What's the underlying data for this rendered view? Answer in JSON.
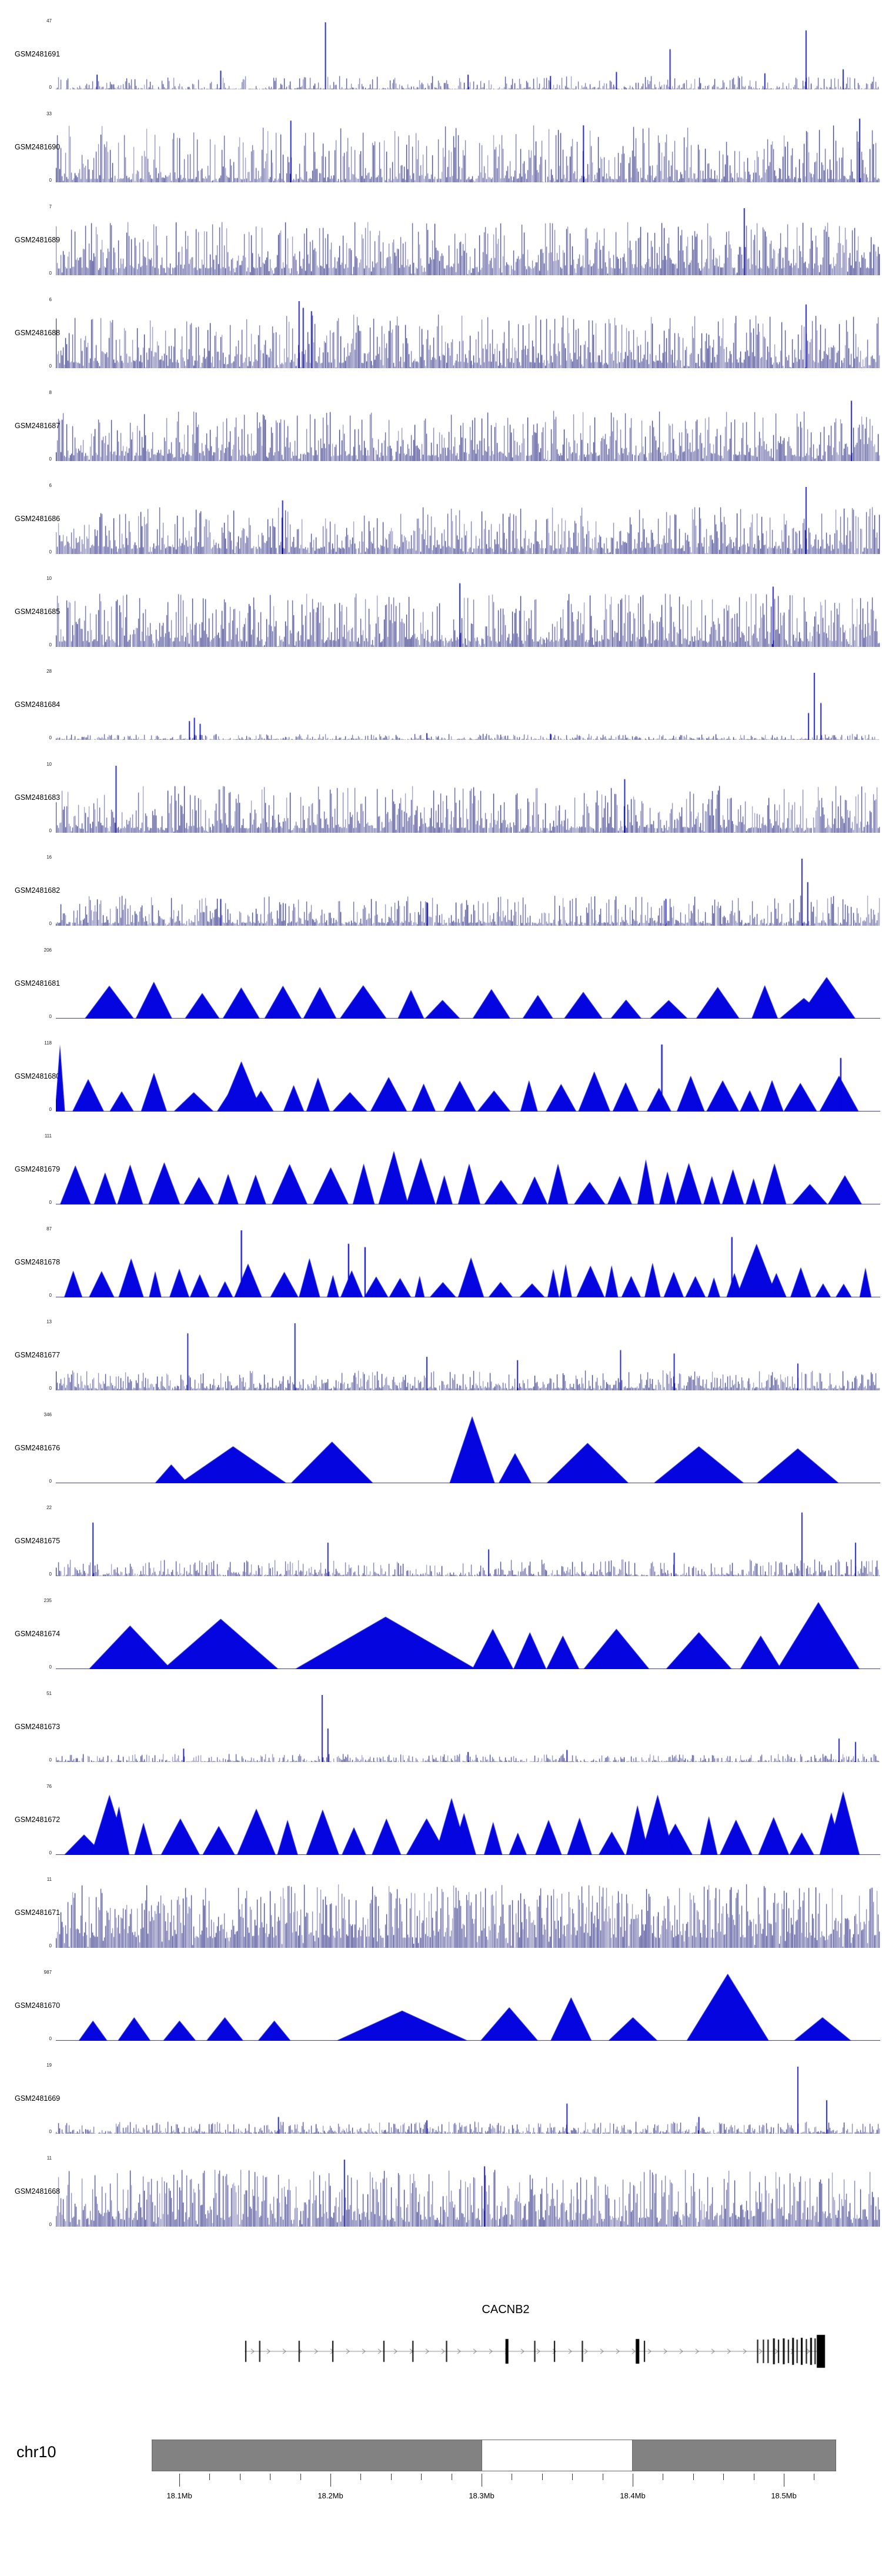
{
  "page": {
    "background": "#ffffff"
  },
  "chart_data": {
    "type": "area",
    "variant": "genome-browser-signal-tracks",
    "title": "",
    "chromosome": "chr10",
    "region_approx_Mb": [
      18.05,
      18.55
    ],
    "color_bars": "#0000b0",
    "color_peaks": "#0505e0",
    "ideogram": {
      "fill": "#828282",
      "white_band_Mb": [
        18.3,
        18.4
      ]
    },
    "x_axis": {
      "units": "Mb",
      "tick_labels": [
        "18.1Mb",
        "18.2Mb",
        "18.3Mb",
        "18.4Mb",
        "18.5Mb"
      ],
      "tick_values_Mb": [
        18.1,
        18.2,
        18.3,
        18.4,
        18.5
      ]
    },
    "gene": {
      "name": "CACNB2",
      "strand_direction": "right",
      "exons": [
        [
          0.002,
          2,
          36
        ],
        [
          0.026,
          2,
          36
        ],
        [
          0.094,
          2,
          36
        ],
        [
          0.152,
          2,
          36
        ],
        [
          0.24,
          2,
          36
        ],
        [
          0.29,
          2,
          36
        ],
        [
          0.348,
          2,
          36
        ],
        [
          0.452,
          5,
          42
        ],
        [
          0.5,
          2,
          36
        ],
        [
          0.534,
          2,
          36
        ],
        [
          0.582,
          2,
          36
        ],
        [
          0.677,
          6,
          42
        ],
        [
          0.689,
          2,
          36
        ],
        [
          0.884,
          2,
          40
        ],
        [
          0.894,
          2,
          40
        ],
        [
          0.902,
          2,
          40
        ],
        [
          0.912,
          3,
          44
        ],
        [
          0.92,
          2,
          40
        ],
        [
          0.929,
          3,
          44
        ],
        [
          0.937,
          2,
          40
        ],
        [
          0.945,
          3,
          46
        ],
        [
          0.952,
          2,
          40
        ],
        [
          0.96,
          3,
          46
        ],
        [
          0.968,
          2,
          42
        ],
        [
          0.976,
          3,
          46
        ],
        [
          0.983,
          2,
          44
        ]
      ],
      "end_box": [
        0.993,
        14,
        56
      ]
    },
    "tracks": [
      {
        "label": "GSM2481691",
        "ymax": 47,
        "ymin": 0,
        "style": "bars",
        "seed": 101,
        "lo": 0.01,
        "hi": 0.2,
        "pow": 2.6,
        "gapp": 0.3,
        "spikes": [
          [
            0.05,
            0.22
          ],
          [
            0.2,
            0.28
          ],
          [
            0.327,
            1.0
          ],
          [
            0.5,
            0.22
          ],
          [
            0.6,
            0.2
          ],
          [
            0.68,
            0.26
          ],
          [
            0.745,
            0.6
          ],
          [
            0.86,
            0.24
          ],
          [
            0.91,
            0.88
          ],
          [
            0.955,
            0.3
          ]
        ]
      },
      {
        "label": "GSM2481690",
        "ymax": 33,
        "ymin": 0,
        "style": "bars",
        "seed": 102,
        "lo": 0.05,
        "hi": 0.85,
        "pow": 2.6,
        "gapp": 0.12,
        "spikes": [
          [
            0.285,
            0.92
          ],
          [
            0.64,
            0.85
          ],
          [
            0.975,
            0.95
          ]
        ]
      },
      {
        "label": "GSM2481689",
        "ymax": 7,
        "ymin": 0,
        "style": "bars",
        "seed": 103,
        "lo": 0.1,
        "hi": 0.8,
        "pow": 1.9,
        "gapp": 0.08,
        "spikes": [
          [
            0.835,
            1.0
          ]
        ]
      },
      {
        "label": "GSM2481688",
        "ymax": 6,
        "ymin": 0,
        "style": "bars",
        "seed": 104,
        "lo": 0.08,
        "hi": 0.8,
        "pow": 2.1,
        "gapp": 0.1,
        "spikes": [
          [
            0.295,
            1.0
          ],
          [
            0.3,
            0.9
          ],
          [
            0.31,
            0.85
          ],
          [
            0.91,
            0.95
          ]
        ]
      },
      {
        "label": "GSM2481687",
        "ymax": 8,
        "ymin": 0,
        "style": "bars",
        "seed": 105,
        "lo": 0.08,
        "hi": 0.75,
        "pow": 2.2,
        "gapp": 0.1,
        "spikes": [
          [
            0.965,
            0.9
          ]
        ]
      },
      {
        "label": "GSM2481686",
        "ymax": 6,
        "ymin": 0,
        "style": "bars",
        "seed": 106,
        "lo": 0.08,
        "hi": 0.7,
        "pow": 2.2,
        "gapp": 0.1,
        "spikes": [
          [
            0.275,
            0.8
          ],
          [
            0.91,
            1.0
          ]
        ]
      },
      {
        "label": "GSM2481685",
        "ymax": 10,
        "ymin": 0,
        "style": "bars",
        "seed": 107,
        "lo": 0.08,
        "hi": 0.8,
        "pow": 2.0,
        "gapp": 0.1,
        "spikes": [
          [
            0.49,
            0.95
          ],
          [
            0.87,
            0.9
          ]
        ]
      },
      {
        "label": "GSM2481684",
        "ymax": 28,
        "ymin": 0,
        "style": "bars",
        "seed": 108,
        "lo": 0.01,
        "hi": 0.09,
        "pow": 2.0,
        "gapp": 0.3,
        "spikes": [
          [
            0.162,
            0.28
          ],
          [
            0.168,
            0.33
          ],
          [
            0.175,
            0.24
          ],
          [
            0.45,
            0.1
          ],
          [
            0.6,
            0.09
          ],
          [
            0.913,
            0.4
          ],
          [
            0.92,
            1.0
          ],
          [
            0.928,
            0.55
          ]
        ]
      },
      {
        "label": "GSM2481683",
        "ymax": 10,
        "ymin": 0,
        "style": "bars",
        "seed": 109,
        "lo": 0.07,
        "hi": 0.7,
        "pow": 2.4,
        "gapp": 0.12,
        "spikes": [
          [
            0.073,
            1.0
          ],
          [
            0.69,
            0.8
          ]
        ]
      },
      {
        "label": "GSM2481682",
        "ymax": 16,
        "ymin": 0,
        "style": "bars",
        "seed": 110,
        "lo": 0.04,
        "hi": 0.45,
        "pow": 2.4,
        "gapp": 0.18,
        "spikes": [
          [
            0.2,
            0.4
          ],
          [
            0.45,
            0.35
          ],
          [
            0.74,
            0.4
          ],
          [
            0.905,
            1.0
          ],
          [
            0.912,
            0.65
          ]
        ]
      },
      {
        "label": "GSM2481681",
        "ymax": 206,
        "ymin": 0,
        "style": "peaks",
        "seed": 111,
        "auto": {
          "xstart": 0.035,
          "xend": 0.99,
          "wmin": 0.03,
          "wmax": 0.06,
          "hmin": 0.25,
          "hmax": 0.55,
          "gap": 0.02
        },
        "features": [
          [
            0.935,
            0.07,
            0.62
          ]
        ]
      },
      {
        "label": "GSM2481680",
        "ymax": 118,
        "ymin": 0,
        "style": "peaks",
        "seed": 112,
        "auto": {
          "xstart": 0.02,
          "xend": 0.99,
          "wmin": 0.02,
          "wmax": 0.05,
          "hmin": 0.25,
          "hmax": 0.6,
          "gap": 0.012
        },
        "features": [
          [
            0.225,
            0.05,
            0.75
          ],
          [
            0.005,
            0.012,
            1.0
          ]
        ],
        "spikes": [
          [
            0.735,
            1.0
          ],
          [
            0.952,
            0.8
          ]
        ]
      },
      {
        "label": "GSM2481679",
        "ymax": 111,
        "ymin": 0,
        "style": "peaks",
        "seed": 113,
        "auto": {
          "xstart": 0.005,
          "xend": 0.995,
          "wmin": 0.018,
          "wmax": 0.045,
          "hmin": 0.3,
          "hmax": 0.7,
          "gap": 0.008
        },
        "features": [
          [
            0.41,
            0.035,
            0.8
          ]
        ]
      },
      {
        "label": "GSM2481678",
        "ymax": 87,
        "ymin": 0,
        "style": "peaks",
        "seed": 114,
        "auto": {
          "xstart": 0.01,
          "xend": 0.995,
          "wmin": 0.012,
          "wmax": 0.035,
          "hmin": 0.2,
          "hmax": 0.6,
          "gap": 0.01
        },
        "features": [
          [
            0.85,
            0.05,
            0.8
          ]
        ],
        "spikes": [
          [
            0.225,
            1.0
          ],
          [
            0.355,
            0.8
          ],
          [
            0.375,
            0.75
          ],
          [
            0.82,
            0.9
          ]
        ]
      },
      {
        "label": "GSM2481677",
        "ymax": 13,
        "ymin": 0,
        "style": "bars",
        "seed": 115,
        "lo": 0.03,
        "hi": 0.3,
        "pow": 2.2,
        "gapp": 0.15,
        "spikes": [
          [
            0.16,
            0.85
          ],
          [
            0.29,
            1.0
          ],
          [
            0.45,
            0.5
          ],
          [
            0.56,
            0.45
          ],
          [
            0.685,
            0.6
          ],
          [
            0.75,
            0.55
          ],
          [
            0.9,
            0.4
          ]
        ]
      },
      {
        "label": "GSM2481676",
        "ymax": 346,
        "ymin": 0,
        "style": "peaks",
        "seed": 116,
        "features": [
          [
            0.14,
            0.04,
            0.28
          ],
          [
            0.215,
            0.13,
            0.55
          ],
          [
            0.335,
            0.1,
            0.62
          ],
          [
            0.505,
            0.055,
            1.0
          ],
          [
            0.557,
            0.04,
            0.45
          ],
          [
            0.645,
            0.1,
            0.6
          ],
          [
            0.78,
            0.11,
            0.55
          ],
          [
            0.9,
            0.1,
            0.52
          ]
        ]
      },
      {
        "label": "GSM2481675",
        "ymax": 22,
        "ymin": 0,
        "style": "bars",
        "seed": 117,
        "lo": 0.02,
        "hi": 0.25,
        "pow": 2.3,
        "gapp": 0.25,
        "spikes": [
          [
            0.045,
            0.8
          ],
          [
            0.33,
            0.5
          ],
          [
            0.525,
            0.4
          ],
          [
            0.75,
            0.35
          ],
          [
            0.905,
            0.95
          ],
          [
            0.97,
            0.5
          ]
        ]
      },
      {
        "label": "GSM2481674",
        "ymax": 235,
        "ymin": 0,
        "style": "peaks",
        "seed": 118,
        "features": [
          [
            0.09,
            0.1,
            0.65
          ],
          [
            0.2,
            0.14,
            0.75
          ],
          [
            0.4,
            0.22,
            0.78
          ],
          [
            0.53,
            0.05,
            0.6
          ],
          [
            0.575,
            0.04,
            0.55
          ],
          [
            0.615,
            0.04,
            0.5
          ],
          [
            0.68,
            0.08,
            0.6
          ],
          [
            0.78,
            0.08,
            0.55
          ],
          [
            0.855,
            0.05,
            0.5
          ],
          [
            0.925,
            0.1,
            1.0
          ]
        ]
      },
      {
        "label": "GSM2481673",
        "ymax": 51,
        "ymin": 0,
        "style": "bars",
        "seed": 119,
        "lo": 0.01,
        "hi": 0.12,
        "pow": 2.0,
        "gapp": 0.3,
        "spikes": [
          [
            0.155,
            0.2
          ],
          [
            0.323,
            1.0
          ],
          [
            0.33,
            0.5
          ],
          [
            0.5,
            0.15
          ],
          [
            0.62,
            0.18
          ],
          [
            0.95,
            0.35
          ],
          [
            0.97,
            0.3
          ]
        ]
      },
      {
        "label": "GSM2481672",
        "ymax": 76,
        "ymin": 0,
        "style": "peaks",
        "seed": 120,
        "auto": {
          "xstart": 0.01,
          "xend": 0.99,
          "wmin": 0.02,
          "wmax": 0.05,
          "hmin": 0.3,
          "hmax": 0.75,
          "gap": 0.012
        },
        "features": [
          [
            0.065,
            0.045,
            0.9
          ],
          [
            0.48,
            0.04,
            0.85
          ],
          [
            0.73,
            0.04,
            0.9
          ],
          [
            0.955,
            0.04,
            0.95
          ]
        ]
      },
      {
        "label": "GSM2481671",
        "ymax": 11,
        "ymin": 0,
        "style": "bars",
        "seed": 121,
        "lo": 0.15,
        "hi": 0.95,
        "pow": 1.7,
        "gapp": 0.06,
        "spikes": []
      },
      {
        "label": "GSM2481670",
        "ymax": 987,
        "ymin": 0,
        "style": "peaks",
        "seed": 122,
        "features": [
          [
            0.045,
            0.035,
            0.3
          ],
          [
            0.095,
            0.04,
            0.35
          ],
          [
            0.15,
            0.04,
            0.3
          ],
          [
            0.205,
            0.045,
            0.35
          ],
          [
            0.265,
            0.04,
            0.3
          ],
          [
            0.42,
            0.16,
            0.45
          ],
          [
            0.55,
            0.07,
            0.5
          ],
          [
            0.625,
            0.05,
            0.65
          ],
          [
            0.7,
            0.06,
            0.35
          ],
          [
            0.815,
            0.1,
            1.0
          ],
          [
            0.93,
            0.07,
            0.35
          ]
        ]
      },
      {
        "label": "GSM2481669",
        "ymax": 19,
        "ymin": 0,
        "style": "bars",
        "seed": 123,
        "lo": 0.02,
        "hi": 0.18,
        "pow": 2.0,
        "gapp": 0.25,
        "spikes": [
          [
            0.27,
            0.25
          ],
          [
            0.45,
            0.2
          ],
          [
            0.62,
            0.45
          ],
          [
            0.78,
            0.25
          ],
          [
            0.9,
            1.0
          ],
          [
            0.935,
            0.5
          ]
        ]
      },
      {
        "label": "GSM2481668",
        "ymax": 11,
        "ymin": 0,
        "style": "bars",
        "seed": 124,
        "lo": 0.1,
        "hi": 0.85,
        "pow": 1.9,
        "gapp": 0.08,
        "spikes": [
          [
            0.35,
            1.0
          ],
          [
            0.52,
            0.9
          ]
        ]
      }
    ]
  }
}
